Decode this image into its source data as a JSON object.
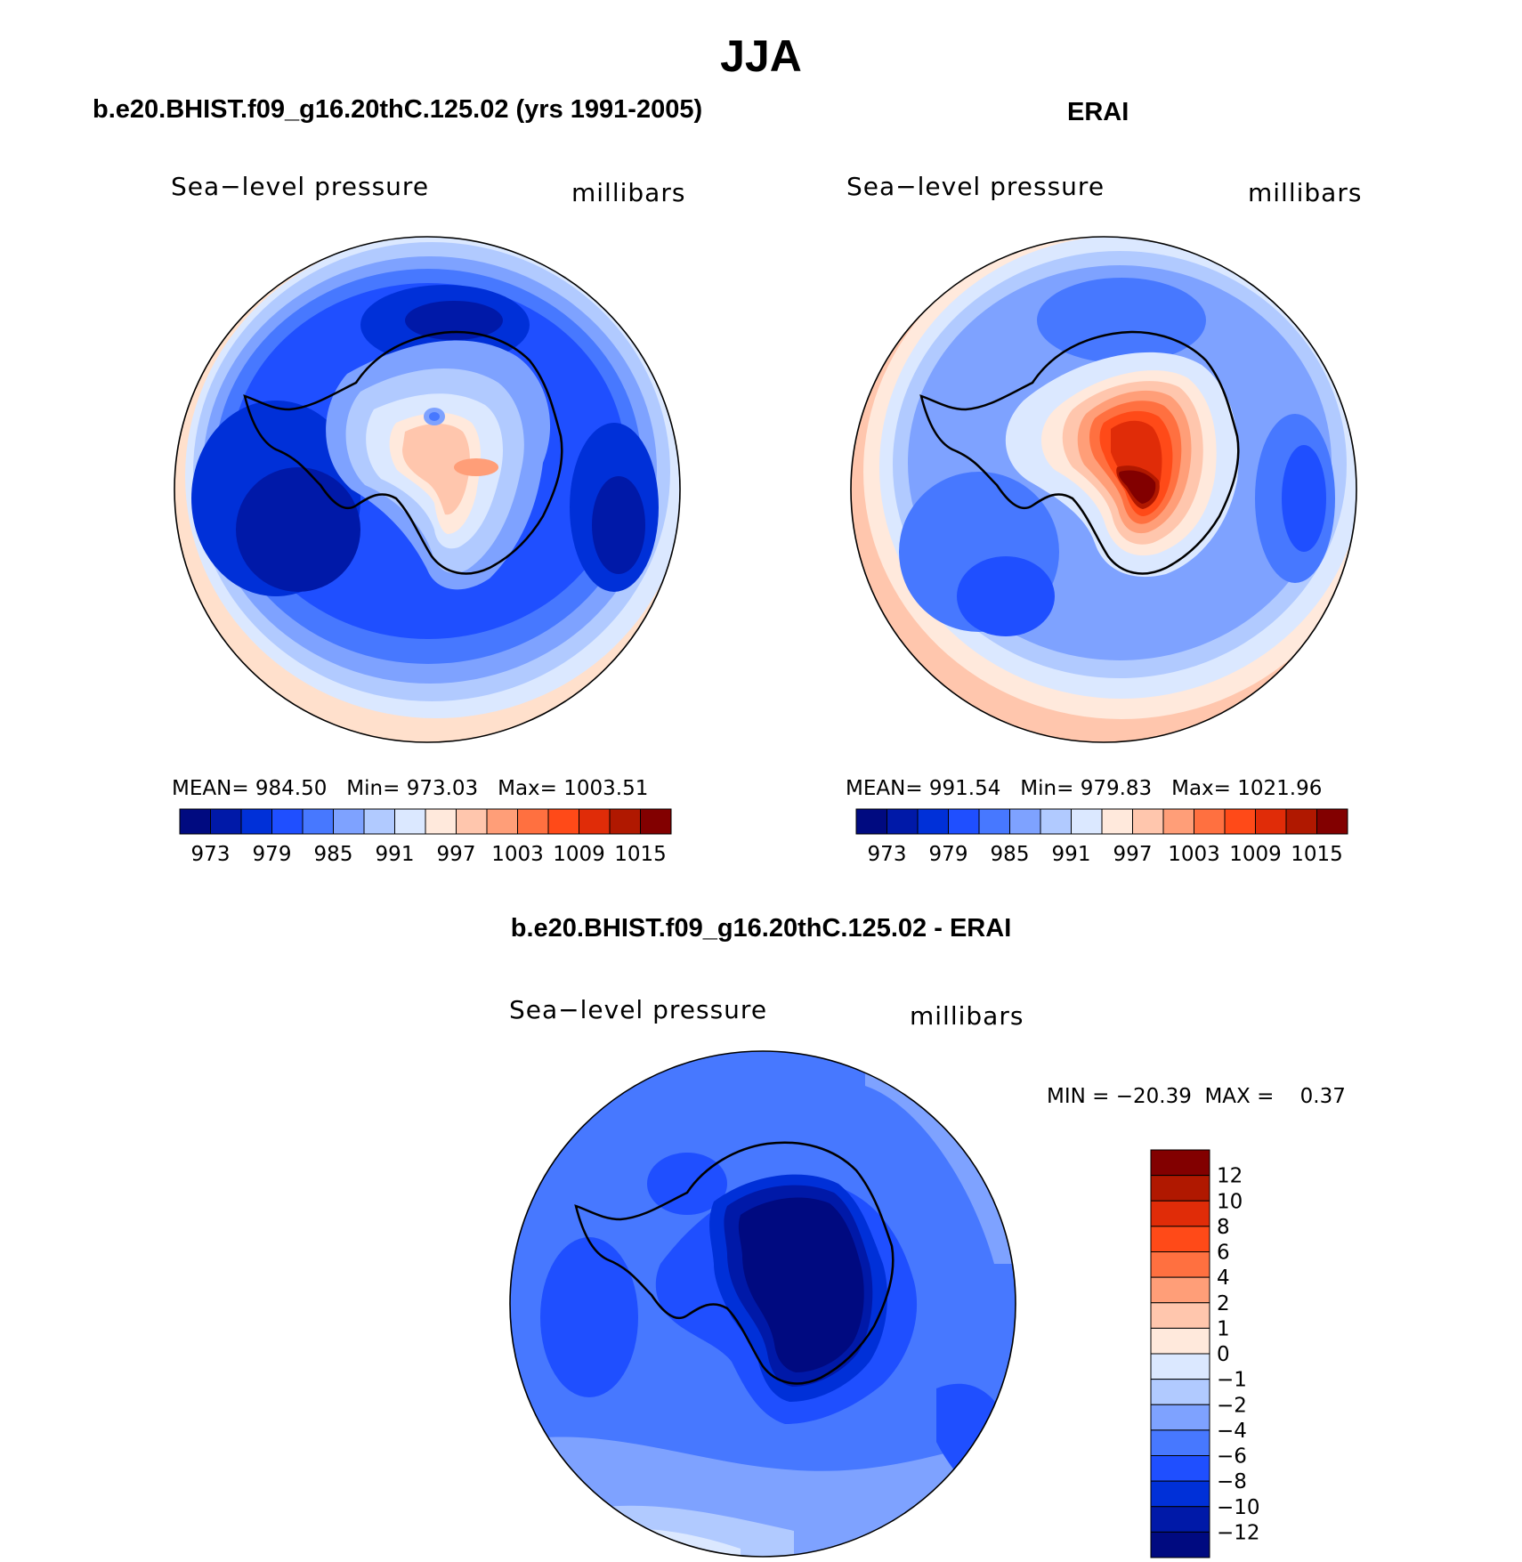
{
  "title": "JJA",
  "panels": {
    "model": {
      "title": "b.e20.BHIST.f09_g16.20thC.125.02 (yrs 1991-2005)",
      "left_label": "Sea−level pressure",
      "right_label": "millibars",
      "stats": "MEAN= 984.50   Min= 973.03   Max= 1003.51"
    },
    "obs": {
      "title": "ERAI",
      "left_label": "Sea−level pressure",
      "right_label": "millibars",
      "stats": "MEAN= 991.54   Min= 979.83   Max= 1021.96"
    },
    "diff": {
      "title": "b.e20.BHIST.f09_g16.20thC.125.02 - ERAI",
      "left_label": "Sea−level pressure",
      "right_label": "millibars",
      "stats": "MIN = −20.39  MAX =    0.37"
    }
  },
  "chart_data": [
    {
      "type": "heatmap",
      "projection": "south polar stereographic",
      "title": "b.e20.BHIST.f09_g16.20thC.125.02 (yrs 1991-2005)",
      "variable": "Sea-level pressure",
      "units": "millibars",
      "mean": 984.5,
      "min": 973.03,
      "max": 1003.51,
      "colorbar_ticks": [
        "973",
        "979",
        "985",
        "991",
        "997",
        "1003",
        "1009",
        "1015"
      ],
      "colorbar_colors": [
        "#000a80",
        "#0019a8",
        "#0030d8",
        "#1f4fff",
        "#4778ff",
        "#7ea2ff",
        "#b1caff",
        "#dbe8ff",
        "#ffe9dc",
        "#ffc6ad",
        "#ff9e78",
        "#ff7040",
        "#ff4a18",
        "#e02c08",
        "#b01800",
        "#820000"
      ]
    },
    {
      "type": "heatmap",
      "projection": "south polar stereographic",
      "title": "ERAI",
      "variable": "Sea-level pressure",
      "units": "millibars",
      "mean": 991.54,
      "min": 979.83,
      "max": 1021.96,
      "colorbar_ticks": [
        "973",
        "979",
        "985",
        "991",
        "997",
        "1003",
        "1009",
        "1015"
      ],
      "colorbar_colors": [
        "#000a80",
        "#0019a8",
        "#0030d8",
        "#1f4fff",
        "#4778ff",
        "#7ea2ff",
        "#b1caff",
        "#dbe8ff",
        "#ffe9dc",
        "#ffc6ad",
        "#ff9e78",
        "#ff7040",
        "#ff4a18",
        "#e02c08",
        "#b01800",
        "#820000"
      ]
    },
    {
      "type": "heatmap",
      "projection": "south polar stereographic",
      "title": "b.e20.BHIST.f09_g16.20thC.125.02 - ERAI",
      "variable": "Sea-level pressure",
      "units": "millibars",
      "min": -20.39,
      "max": 0.37,
      "colorbar_ticks": [
        "12",
        "10",
        "8",
        "6",
        "4",
        "2",
        "1",
        "0",
        "−1",
        "−2",
        "−4",
        "−6",
        "−8",
        "−10",
        "−12"
      ],
      "colorbar_colors": [
        "#820000",
        "#b01800",
        "#e02c08",
        "#ff4a18",
        "#ff7040",
        "#ff9e78",
        "#ffc6ad",
        "#ffe9dc",
        "#dbe8ff",
        "#b1caff",
        "#7ea2ff",
        "#4778ff",
        "#1f4fff",
        "#0030d8",
        "#0019a8",
        "#000a80"
      ]
    }
  ]
}
